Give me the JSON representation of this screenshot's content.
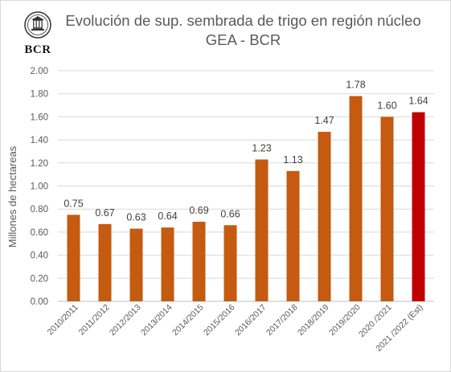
{
  "logo": {
    "text": "BCR"
  },
  "chart_data": {
    "type": "bar",
    "title_line1": "Evolución de sup. sembrada de trigo en región núcleo",
    "title_line2": "GEA - BCR",
    "xlabel": "",
    "ylabel": "Millones de hectareas",
    "ylim": [
      0,
      2
    ],
    "yticks": [
      "0.00",
      "0.20",
      "0.40",
      "0.60",
      "0.80",
      "1.00",
      "1.20",
      "1.40",
      "1.60",
      "1.80",
      "2.00"
    ],
    "grid": true,
    "categories": [
      "2010/2011",
      "2011/2012",
      "2012/2013",
      "2013/2014",
      "2014/2015",
      "2015/2016",
      "2016/2017",
      "2017/2018",
      "2018/2019",
      "2019/2020",
      "2020 /2021",
      "2021 /2022 (Est)"
    ],
    "values": [
      0.75,
      0.67,
      0.63,
      0.64,
      0.69,
      0.66,
      1.23,
      1.13,
      1.47,
      1.78,
      1.6,
      1.64
    ],
    "data_labels": [
      "0.75",
      "0.67",
      "0.63",
      "0.64",
      "0.69",
      "0.66",
      "1.23",
      "1.13",
      "1.47",
      "1.78",
      "1.60",
      "1.64"
    ],
    "colors": [
      "#c55a11",
      "#c55a11",
      "#c55a11",
      "#c55a11",
      "#c55a11",
      "#c55a11",
      "#c55a11",
      "#c55a11",
      "#c55a11",
      "#c55a11",
      "#c55a11",
      "#c00000"
    ]
  }
}
